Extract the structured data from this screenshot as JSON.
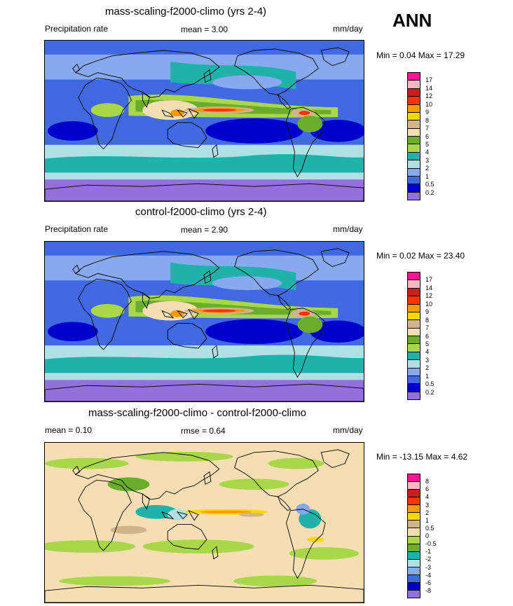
{
  "season": "ANN",
  "panels": [
    {
      "title": "mass-scaling-f2000-climo (yrs 2-4)",
      "left_label": "Precipitation rate",
      "mean_label": "mean =  3.00",
      "units": "mm/day",
      "minmax": "Min =  0.04 Max =  17.29",
      "scheme": "abs"
    },
    {
      "title": "control-f2000-climo (yrs 2-4)",
      "left_label": "Precipitation rate",
      "mean_label": "mean =  2.90",
      "units": "mm/day",
      "minmax": "Min =  0.02 Max =  23.40",
      "scheme": "abs"
    },
    {
      "title": "mass-scaling-f2000-climo - control-f2000-climo",
      "left_label": "mean =  0.10",
      "mean_label": "rmse =  0.64",
      "units": "mm/day",
      "minmax": "Min = -13.15 Max =  4.62",
      "scheme": "diff"
    }
  ],
  "colorbars": {
    "abs": {
      "colors": [
        "#ff1493",
        "#ffb6c1",
        "#c81e1e",
        "#ff3300",
        "#ff9900",
        "#ffd700",
        "#d2b48c",
        "#f5deb3",
        "#6aad2d",
        "#a8d84a",
        "#20b2aa",
        "#b0e0e6",
        "#87a9f0",
        "#4169e1",
        "#0000cd",
        "#9370db"
      ],
      "ticks": [
        "17",
        "14",
        "12",
        "10",
        "9",
        "8",
        "7",
        "6",
        "5",
        "4",
        "3",
        "2",
        "1",
        "0.5",
        "0.2"
      ]
    },
    "diff": {
      "colors": [
        "#ff1493",
        "#ffb6c1",
        "#c81e1e",
        "#ff3300",
        "#ff9900",
        "#ffd700",
        "#d2b48c",
        "#f5deb3",
        "#a8d84a",
        "#6aad2d",
        "#20b2aa",
        "#b0e0e6",
        "#87a9f0",
        "#4169e1",
        "#0000cd",
        "#9370db"
      ],
      "ticks": [
        "8",
        "6",
        "4",
        "3",
        "2",
        "1",
        "0.5",
        "0",
        "-0.5",
        "-1",
        "-2",
        "-3",
        "-4",
        "-6",
        "-8"
      ]
    }
  }
}
